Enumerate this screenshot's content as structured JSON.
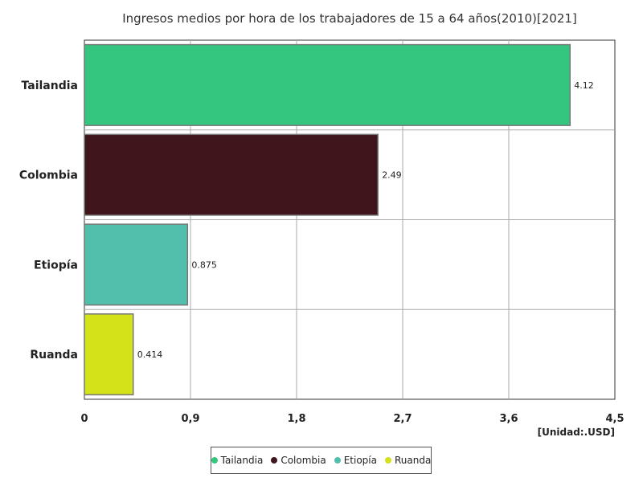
{
  "chart_data": {
    "type": "bar",
    "orientation": "horizontal",
    "title": "Ingresos medios por hora de los trabajadores de 15 a 64 años(2010)[2021]",
    "unit_label": "[Unidad:.USD]",
    "categories": [
      "Tailandia",
      "Colombia",
      "Etiopía",
      "Ruanda"
    ],
    "values": [
      4.12,
      2.49,
      0.875,
      0.414
    ],
    "value_labels": [
      "4.12",
      "2.49",
      "0.875",
      "0.414"
    ],
    "colors": [
      "#34c67f",
      "#40151b",
      "#52bfad",
      "#d4e21a"
    ],
    "xlim": [
      0,
      4.5
    ],
    "xticks": [
      0,
      0.9,
      1.8,
      2.7,
      3.6,
      4.5
    ],
    "xtick_labels": [
      "0",
      "0,9",
      "1,8",
      "2,7",
      "3,6",
      "4,5"
    ],
    "grid": true,
    "legend_position": "bottom"
  }
}
